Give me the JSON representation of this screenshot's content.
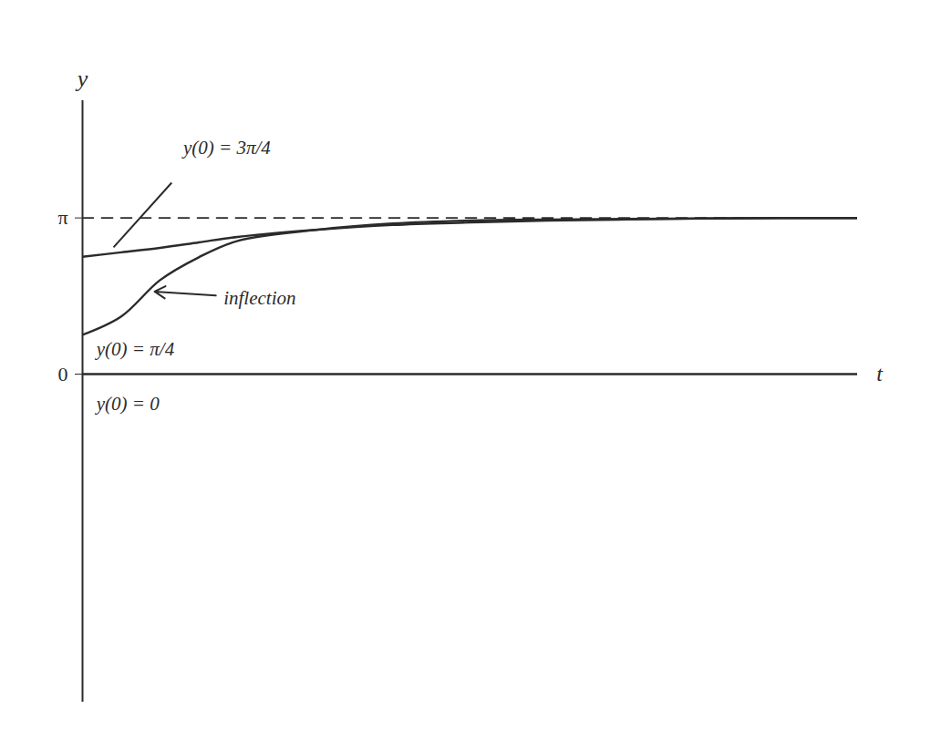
{
  "chart_data": {
    "type": "line",
    "x_label": "t",
    "y_label": "y",
    "x": [
      0,
      0.5,
      1,
      1.5,
      2,
      3,
      4,
      5,
      6,
      7,
      8,
      9,
      10
    ],
    "xlim": [
      0,
      10
    ],
    "ylim": [
      -6.6,
      5.5
    ],
    "yticks": [
      0,
      {
        "value": 3.14159,
        "label": "π"
      }
    ],
    "tick_labels": "y",
    "grid": false,
    "series": [
      {
        "name": "y(0) = 3π/4",
        "color": "#2b2b2b",
        "line_style": "solid",
        "values": [
          2.36,
          2.45,
          2.54,
          2.65,
          2.76,
          2.9,
          3.0,
          3.05,
          3.09,
          3.11,
          3.13,
          3.14,
          3.14
        ]
      },
      {
        "name": "y(0) = π/4",
        "color": "#2b2b2b",
        "line_style": "solid",
        "values": [
          0.79,
          1.16,
          1.89,
          2.35,
          2.68,
          2.9,
          3.03,
          3.09,
          3.11,
          3.12,
          3.13,
          3.14,
          3.14
        ]
      },
      {
        "name": "y(0) = 0",
        "color": "#2b2b2b",
        "line_style": "solid",
        "values": [
          0,
          0,
          0,
          0,
          0,
          0,
          0,
          0,
          0,
          0,
          0,
          0,
          0
        ]
      },
      {
        "color": "#2b2b2b",
        "line_style": "dashed",
        "values": [
          3.14159,
          3.14159,
          3.14159,
          3.14159,
          3.14159,
          3.14159,
          3.14159,
          3.14159,
          3.14159,
          3.14159,
          3.14159,
          3.14159,
          3.14159
        ]
      }
    ],
    "annotations": [
      {
        "text": "y(0) = 3π/4",
        "x": 1.3,
        "y": 4.55,
        "pointer": [
          [
            1.15,
            3.85
          ],
          [
            0.4,
            2.55
          ]
        ]
      },
      {
        "text": "y(0) = π/4",
        "x": 0.18,
        "y": 0.5
      },
      {
        "text": "y(0) = 0",
        "x": 0.18,
        "y": -0.6
      },
      {
        "text": "inflection",
        "x": 1.82,
        "y": 1.53,
        "pointer": [
          [
            1.72,
            1.58
          ],
          [
            0.93,
            1.66
          ]
        ],
        "marker": "arrow"
      }
    ]
  }
}
